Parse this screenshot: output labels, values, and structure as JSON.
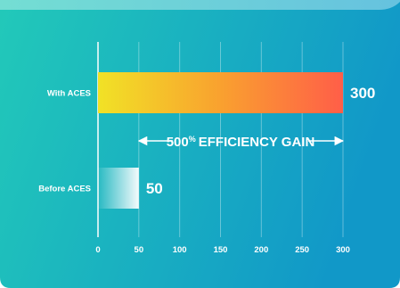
{
  "colors": {
    "panel_left": "#22c9b9",
    "panel_right": "#1198c8",
    "bar_with_start": "#f1e226",
    "bar_with_end": "#ff5e48",
    "bar_before_start": "#dff4f3",
    "bar_before_end": "#ffffff",
    "text": "#ffffff"
  },
  "annotation": {
    "multiplier": "500",
    "percent": "%",
    "text": "EFFICIENCY GAIN"
  },
  "chart_data": {
    "type": "bar",
    "orientation": "horizontal",
    "categories": [
      "With ACES",
      "Before ACES"
    ],
    "values": [
      300,
      50
    ],
    "value_labels": [
      "300",
      "50"
    ],
    "title": "",
    "xlabel": "",
    "ylabel": "",
    "xlim": [
      0,
      300
    ],
    "x_ticks": [
      0,
      50,
      100,
      150,
      200,
      250,
      300
    ],
    "grid": true,
    "legend": "none"
  }
}
